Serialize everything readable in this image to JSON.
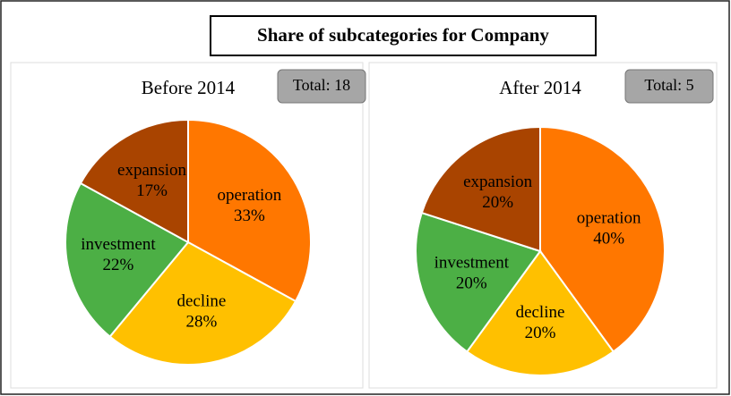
{
  "title": "Share of subcategories for Company",
  "chart_data": [
    {
      "type": "pie",
      "title": "Before 2014",
      "annotation": "Total: 18",
      "categories": [
        "operation",
        "decline",
        "investment",
        "expansion"
      ],
      "values": [
        33,
        28,
        22,
        17
      ],
      "value_labels": [
        "33%",
        "28%",
        "22%",
        "17%"
      ],
      "colors": [
        "#ff7700",
        "#ffc000",
        "#4caf45",
        "#a94400"
      ]
    },
    {
      "type": "pie",
      "title": "After 2014",
      "annotation": "Total: 5",
      "categories": [
        "operation",
        "decline",
        "investment",
        "expansion"
      ],
      "values": [
        40,
        20,
        20,
        20
      ],
      "value_labels": [
        "40%",
        "20%",
        "20%",
        "20%"
      ],
      "colors": [
        "#ff7700",
        "#ffc000",
        "#4caf45",
        "#a94400"
      ]
    }
  ]
}
